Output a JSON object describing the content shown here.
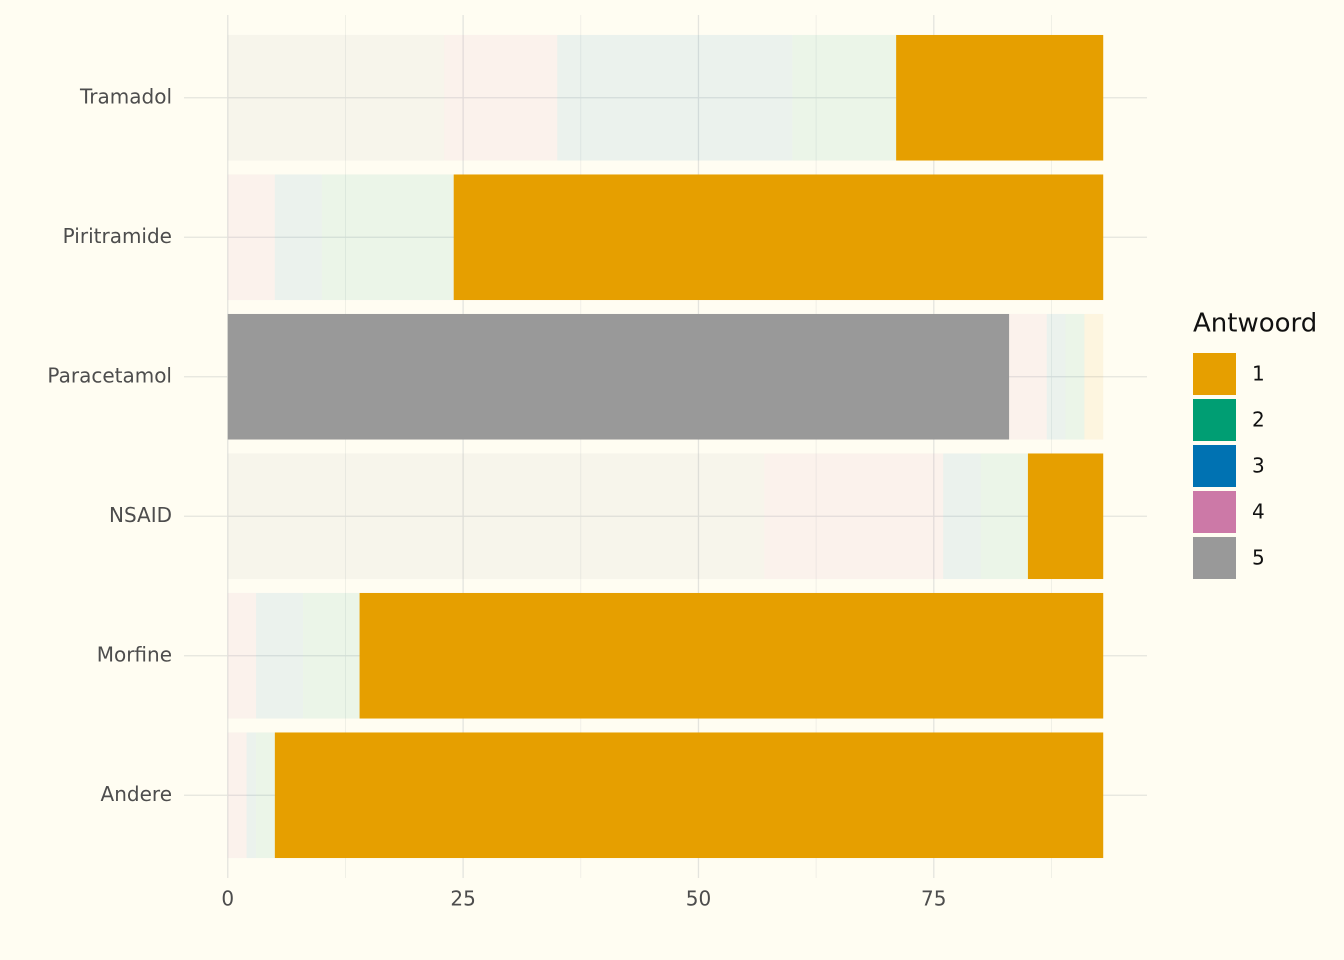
{
  "chart_data": {
    "type": "stacked_barh",
    "categories": [
      "Tramadol",
      "Piritramide",
      "Paracetamol",
      "NSAID",
      "Morfine",
      "Andere"
    ],
    "series": [
      {
        "name": "1",
        "color": "#E69F00",
        "values": [
          22,
          69,
          2,
          8,
          79,
          88
        ],
        "highlight": [
          true,
          true,
          false,
          true,
          true,
          true
        ]
      },
      {
        "name": "2",
        "color": "#009E73",
        "values": [
          11,
          14,
          2,
          5,
          6,
          2
        ],
        "highlight": [
          false,
          false,
          false,
          false,
          false,
          false
        ]
      },
      {
        "name": "3",
        "color": "#0072B2",
        "values": [
          25,
          5,
          2,
          4,
          5,
          1
        ],
        "highlight": [
          false,
          false,
          false,
          false,
          false,
          false
        ]
      },
      {
        "name": "4",
        "color": "#CC79A7",
        "values": [
          12,
          5,
          4,
          19,
          3,
          2
        ],
        "highlight": [
          false,
          false,
          false,
          false,
          false,
          false
        ]
      },
      {
        "name": "5",
        "color": "#999999",
        "values": [
          23,
          0,
          83,
          57,
          0,
          0
        ],
        "highlight": [
          false,
          false,
          true,
          false,
          false,
          false
        ]
      }
    ],
    "legend_title": "Antwoord",
    "xlim": [
      -4.65,
      97.65
    ],
    "xticks": [
      0,
      25,
      50,
      75
    ],
    "minor_xticks": [
      12.5,
      37.5,
      62.5,
      87.5
    ],
    "grid": true,
    "legend": "right"
  }
}
